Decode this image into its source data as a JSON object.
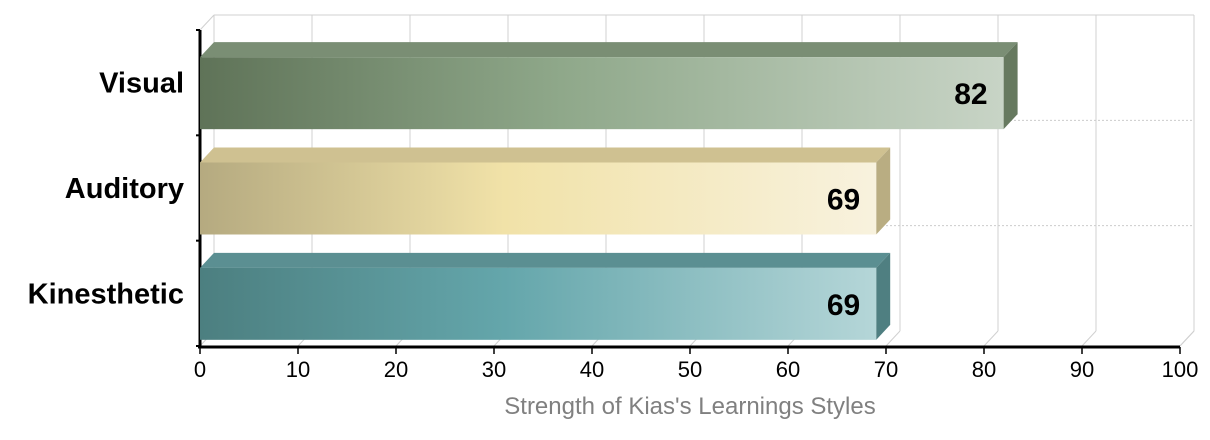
{
  "chart_data": {
    "type": "bar",
    "orientation": "horizontal",
    "categories": [
      "Visual",
      "Auditory",
      "Kinesthetic"
    ],
    "values": [
      82,
      69,
      69
    ],
    "colors": [
      {
        "dark": "#5f7358",
        "mid": "#8fa88a",
        "light": "#c8d4c6",
        "top": "#7a8e74",
        "side": "#66795f"
      },
      {
        "dark": "#b5aa80",
        "mid": "#f1e2a8",
        "light": "#f8f2de",
        "top": "#cfc191",
        "side": "#b9ad82"
      },
      {
        "dark": "#4c7f80",
        "mid": "#64a6ab",
        "light": "#b5d6d8",
        "top": "#5b8f92",
        "side": "#4f7f81"
      }
    ],
    "xlim": [
      0,
      100
    ],
    "xticks": [
      "0",
      "10",
      "20",
      "30",
      "40",
      "50",
      "60",
      "70",
      "80",
      "90",
      "100"
    ],
    "xlabel": "Strength of Kias's Learnings Styles",
    "grid": true,
    "legend": "none"
  }
}
